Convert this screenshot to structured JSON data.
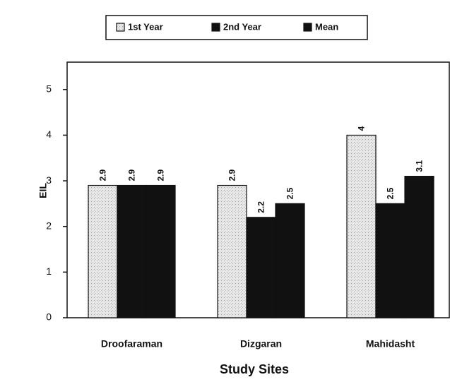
{
  "chart_data": {
    "type": "bar",
    "categories": [
      "Droofaraman",
      "Dizgaran",
      "Mahidasht"
    ],
    "series": [
      {
        "name": "1st Year",
        "color": "#e4e4e4",
        "values": [
          2.9,
          2.9,
          4
        ]
      },
      {
        "name": "2nd Year",
        "color": "#111111",
        "values": [
          2.9,
          2.2,
          2.5
        ]
      },
      {
        "name": "Mean",
        "color": "#111111",
        "values": [
          2.9,
          2.5,
          3.1
        ]
      }
    ],
    "ylim": [
      0,
      5.6
    ],
    "yticks": [
      0,
      1,
      2,
      3,
      4,
      5
    ],
    "ylabel": "EIL",
    "xlabel": "Study Sites"
  }
}
